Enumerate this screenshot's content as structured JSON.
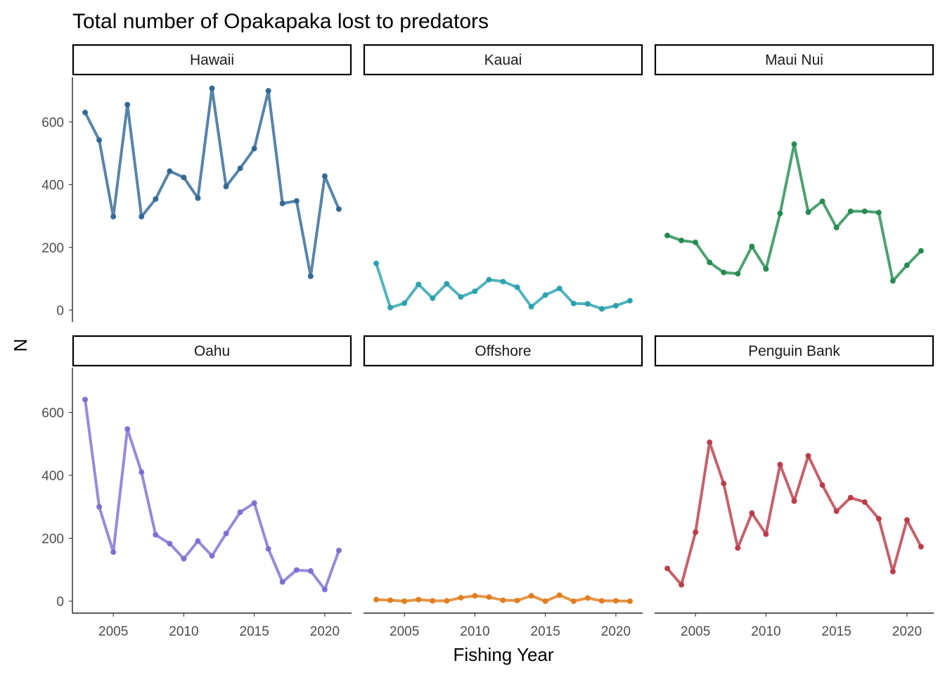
{
  "chart_data": {
    "type": "line",
    "title": "Total number of Opakapaka lost to predators",
    "xlabel": "Fishing Year",
    "ylabel": "N",
    "x": [
      2003,
      2004,
      2005,
      2006,
      2007,
      2008,
      2009,
      2010,
      2011,
      2012,
      2013,
      2014,
      2015,
      2016,
      2017,
      2018,
      2019,
      2020,
      2021
    ],
    "xlim": [
      2002.1,
      2021.9
    ],
    "ylim": [
      -38,
      742
    ],
    "x_ticks": [
      2005,
      2010,
      2015,
      2020
    ],
    "x_tick_labels": [
      "2005",
      "2010",
      "2015",
      "2020"
    ],
    "y_ticks": [
      0,
      200,
      400,
      600
    ],
    "y_tick_labels": [
      "0",
      "200",
      "400",
      "600"
    ],
    "grid": false,
    "legend": "none",
    "facets": [
      {
        "name": "Hawaii",
        "color": "#2E6593",
        "values": [
          630,
          542,
          298,
          655,
          298,
          354,
          443,
          423,
          357,
          707,
          394,
          452,
          515,
          699,
          340,
          348,
          108,
          427,
          322
        ]
      },
      {
        "name": "Kauai",
        "color": "#26A0AC",
        "values": [
          149,
          8,
          22,
          82,
          38,
          84,
          42,
          60,
          97,
          91,
          73,
          11,
          48,
          69,
          21,
          20,
          4,
          14,
          30
        ]
      },
      {
        "name": "Maui Nui",
        "color": "#22894F",
        "values": [
          238,
          222,
          216,
          152,
          120,
          116,
          203,
          131,
          308,
          529,
          312,
          347,
          263,
          315,
          315,
          311,
          93,
          143,
          189
        ]
      },
      {
        "name": "Oahu",
        "color": "#7A6ED2",
        "values": [
          641,
          300,
          156,
          547,
          410,
          211,
          183,
          135,
          191,
          144,
          215,
          283,
          312,
          166,
          61,
          99,
          96,
          37,
          161
        ]
      },
      {
        "name": "Offshore",
        "color": "#E07B1C",
        "values": [
          5,
          3,
          0,
          5,
          1,
          1,
          11,
          17,
          13,
          3,
          2,
          17,
          0,
          19,
          0,
          10,
          1,
          1,
          0
        ]
      },
      {
        "name": "Penguin Bank",
        "color": "#B83A46",
        "values": [
          104,
          52,
          219,
          505,
          374,
          169,
          280,
          213,
          434,
          318,
          462,
          369,
          286,
          329,
          315,
          262,
          94,
          258,
          173
        ]
      }
    ]
  }
}
